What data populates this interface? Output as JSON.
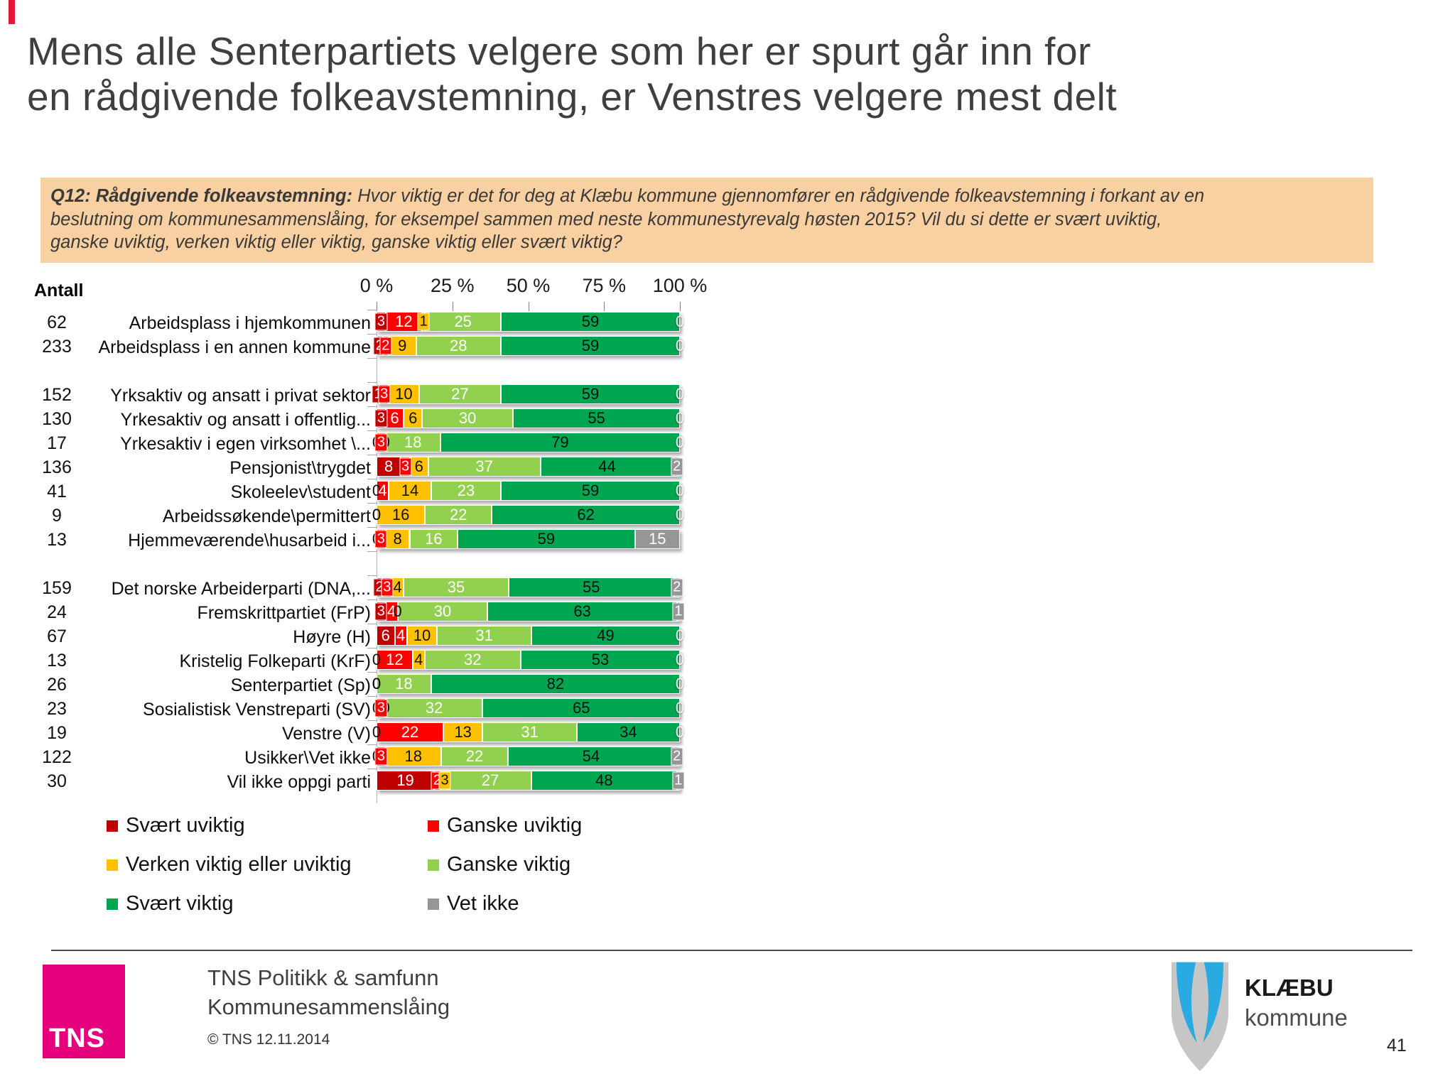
{
  "title": {
    "line1": "Mens alle Senterpartiets velgere som her er spurt går inn for",
    "line2": "en rådgivende folkeavstemning, er Venstres velgere mest delt"
  },
  "question": {
    "label": "Q12: Rådgivende folkeavstemning:",
    "line1": "Hvor viktig er det for deg at Klæbu kommune gjennomfører en rådgivende folkeavstemning i forkant av en",
    "line2": "beslutning om kommunesammenslåing, for eksempel sammen med neste kommunestyrevalg høsten 2015? Vil du si dette er svært uviktig,",
    "line3": "ganske uviktig, verken viktig eller viktig, ganske viktig eller svært viktig?"
  },
  "chart_data": {
    "type": "bar",
    "stacked": true,
    "orientation": "horizontal",
    "antall_header": "Antall",
    "x_ticks": [
      "0 %",
      "25 %",
      "50 %",
      "75 %",
      "100 %"
    ],
    "xlim": [
      0,
      100
    ],
    "legend_position": "bottom-left",
    "categories": [
      {
        "name": "Svært uviktig",
        "color": "#C00000"
      },
      {
        "name": "Ganske uviktig",
        "color": "#FE0000"
      },
      {
        "name": "Verken viktig eller uviktig",
        "color": "#FFC000"
      },
      {
        "name": "Ganske viktig",
        "color": "#92D050"
      },
      {
        "name": "Svært viktig",
        "color": "#00A54F"
      },
      {
        "name": "Vet ikke",
        "color": "#969696"
      }
    ],
    "rows": [
      {
        "antall": "62",
        "label": "Arbeidsplass i hjemkommunen",
        "values": [
          3,
          12,
          1,
          25,
          59,
          0
        ]
      },
      {
        "antall": "233",
        "label": "Arbeidsplass i en annen kommune",
        "values": [
          2,
          2,
          9,
          28,
          59,
          0
        ]
      },
      {
        "antall": "152",
        "label": "Yrksaktiv og ansatt i privat sektor",
        "values": [
          1,
          3,
          10,
          27,
          59,
          0
        ],
        "gap_before": true
      },
      {
        "antall": "130",
        "label": "Yrkesaktiv og ansatt i offentlig...",
        "values": [
          3,
          6,
          6,
          30,
          55,
          0
        ]
      },
      {
        "antall": "17",
        "label": "Yrkesaktiv i egen virksomhet \\...",
        "values": [
          0,
          3,
          0,
          18,
          79,
          0
        ]
      },
      {
        "antall": "136",
        "label": "Pensjonist\\trygdet",
        "values": [
          8,
          3,
          6,
          37,
          44,
          2
        ]
      },
      {
        "antall": "41",
        "label": "Skoleelev\\student",
        "values": [
          0,
          4,
          14,
          23,
          59,
          0
        ]
      },
      {
        "antall": "9",
        "label": "Arbeidssøkende\\permittert",
        "values": [
          0,
          0,
          16,
          22,
          62,
          0
        ]
      },
      {
        "antall": "13",
        "label": "Hjemmeværende\\husarbeid i...",
        "values": [
          0,
          3,
          8,
          16,
          59,
          15
        ]
      },
      {
        "antall": "159",
        "label": "Det norske Arbeiderparti (DNA,...",
        "values": [
          2,
          3,
          4,
          35,
          55,
          2
        ],
        "gap_before": true
      },
      {
        "antall": "24",
        "label": "Fremskrittpartiet (FrP)",
        "values": [
          3,
          4,
          0,
          30,
          63,
          1
        ]
      },
      {
        "antall": "67",
        "label": "Høyre (H)",
        "values": [
          6,
          4,
          10,
          31,
          49,
          0
        ]
      },
      {
        "antall": "13",
        "label": "Kristelig Folkeparti (KrF)",
        "values": [
          0,
          12,
          4,
          32,
          53,
          0
        ]
      },
      {
        "antall": "26",
        "label": "Senterpartiet (Sp)",
        "values": [
          0,
          0,
          0,
          18,
          82,
          0
        ]
      },
      {
        "antall": "23",
        "label": "Sosialistisk Venstreparti (SV)",
        "values": [
          0,
          3,
          0,
          32,
          65,
          0
        ]
      },
      {
        "antall": "19",
        "label": "Venstre (V)",
        "values": [
          0,
          22,
          13,
          31,
          34,
          0
        ]
      },
      {
        "antall": "122",
        "label": "Usikker\\Vet ikke",
        "values": [
          0,
          3,
          18,
          22,
          54,
          2
        ]
      },
      {
        "antall": "30",
        "label": "Vil ikke oppgi parti",
        "values": [
          19,
          2,
          3,
          27,
          48,
          1
        ]
      }
    ]
  },
  "footer": {
    "tns_logo_text": "TNS",
    "line1": "TNS Politikk & samfunn",
    "line2": "Kommunesammenslåing",
    "copyright": "© TNS 12.11.2014",
    "org_name": "KLÆBU",
    "org_sub": "kommune",
    "page_number": "41"
  },
  "colors": {
    "question_box_bg": "#F9D0A1",
    "title_text": "#3F3F3F",
    "tns_magenta": "#E6007E",
    "klaebu_blue": "#29ABE2",
    "accent_mark": "#E31937"
  }
}
